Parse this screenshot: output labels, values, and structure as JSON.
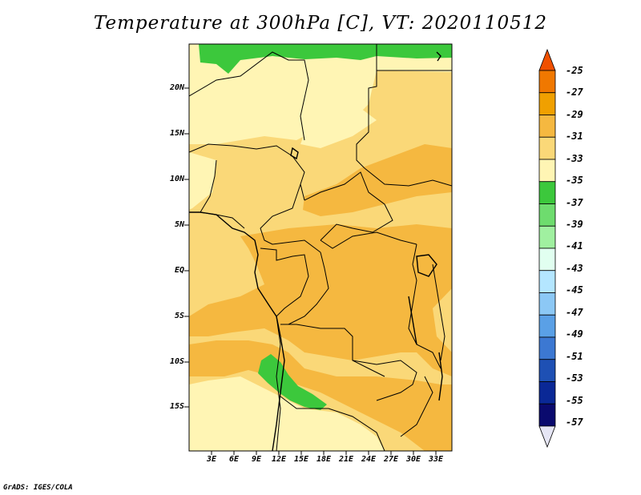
{
  "title": "Temperature at 300hPa [C], VT: 2020110512",
  "credit": "GrADS: IGES/COLA",
  "map": {
    "lat_labels": [
      "20N",
      "15N",
      "10N",
      "5N",
      "EQ",
      "5S",
      "10S",
      "15S"
    ],
    "lon_labels": [
      "3E",
      "6E",
      "9E",
      "12E",
      "15E",
      "18E",
      "21E",
      "24E",
      "27E",
      "30E",
      "33E"
    ]
  },
  "colorbar": {
    "labels": [
      "-25",
      "-27",
      "-29",
      "-31",
      "-33",
      "-35",
      "-37",
      "-39",
      "-41",
      "-43",
      "-45",
      "-47",
      "-49",
      "-51",
      "-53",
      "-55",
      "-57"
    ],
    "colors": [
      "#f05000",
      "#f07800",
      "#f0a000",
      "#f5b840",
      "#fad878",
      "#fff5b4",
      "#3cc83c",
      "#6edc6e",
      "#a0f0a0",
      "#e1fff0",
      "#b4e6ff",
      "#8cc8f5",
      "#5aa0e6",
      "#3c78d2",
      "#1e50b4",
      "#0a2896",
      "#0a0a6e",
      "#e6e6f5"
    ]
  },
  "colors": {
    "t33": "#fad878",
    "t35": "#fff5b4",
    "t31": "#f5b840",
    "t37": "#3cc83c"
  }
}
